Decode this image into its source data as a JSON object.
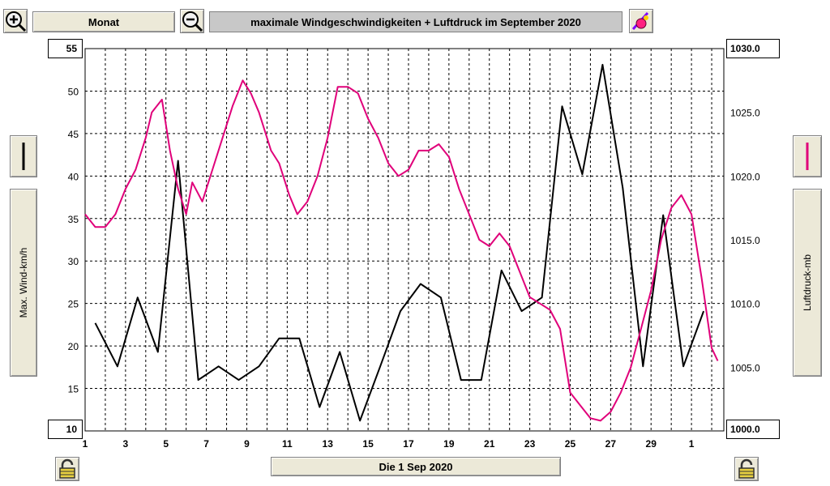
{
  "toolbar": {
    "period_label": "Monat",
    "title": "maximale Windgeschwindigkeiten + Luftdruck im September 2020",
    "date_label": "Die 1 Sep 2020"
  },
  "colors": {
    "wind": "#000000",
    "pressure": "#e0007a",
    "grid": "#000000"
  },
  "chart_data": {
    "type": "line",
    "title": "maximale Windgeschwindigkeiten + Luftdruck im September 2020",
    "ylabel": "Max. Wind-km/h",
    "y2label": "Luftdruck-mb",
    "ylim": [
      10,
      55
    ],
    "y2lim": [
      1000.0,
      1030.0
    ],
    "yticks": [
      "55",
      "50",
      "45",
      "40",
      "35",
      "30",
      "25",
      "20",
      "15",
      "10"
    ],
    "y2ticks": [
      "1030.0",
      "1025.0",
      "1020.0",
      "1015.0",
      "1010.0",
      "1005.0",
      "1000.0"
    ],
    "xticks": [
      "1",
      "3",
      "5",
      "7",
      "9",
      "11",
      "13",
      "15",
      "17",
      "19",
      "21",
      "23",
      "25",
      "27",
      "29",
      "1"
    ],
    "xlim_days": [
      1,
      32.6
    ],
    "grid": true,
    "series": [
      {
        "name": "Max. Wind-km/h",
        "axis": "left",
        "x": [
          1.5,
          2.6,
          3.6,
          4.6,
          5.6,
          6.6,
          7.6,
          8.6,
          9.6,
          10.6,
          11.6,
          12.6,
          13.6,
          14.6,
          15.6,
          16.6,
          17.6,
          18.6,
          19.6,
          20.6,
          21.6,
          22.6,
          23.6,
          24.6,
          25.6,
          26.6,
          27.6,
          28.6,
          29.6,
          30.6,
          31.6
        ],
        "values": [
          22.7,
          17.6,
          25.7,
          19.3,
          41.8,
          16.0,
          17.6,
          16.0,
          17.6,
          20.9,
          20.9,
          12.8,
          19.3,
          11.2,
          17.6,
          24.1,
          27.3,
          25.7,
          16.0,
          16.0,
          28.9,
          24.1,
          25.7,
          48.2,
          40.2,
          53.1,
          38.6,
          17.6,
          35.4,
          17.6,
          24.1
        ]
      },
      {
        "name": "Luftdruck-mb",
        "axis": "right",
        "x": [
          1.0,
          1.5,
          2.0,
          2.5,
          3.0,
          3.5,
          4.0,
          4.3,
          4.8,
          5.2,
          5.6,
          6.0,
          6.3,
          6.8,
          7.3,
          7.8,
          8.3,
          8.8,
          9.2,
          9.6,
          10.2,
          10.6,
          11.1,
          11.5,
          12.0,
          12.5,
          13.0,
          13.5,
          14.0,
          14.5,
          15.0,
          15.5,
          16.0,
          16.5,
          17.0,
          17.5,
          18.0,
          18.5,
          19.0,
          19.5,
          20.0,
          20.5,
          21.0,
          21.5,
          22.0,
          22.5,
          23.0,
          23.5,
          24.0,
          24.5,
          25.0,
          25.5,
          26.0,
          26.5,
          27.0,
          27.5,
          28.0,
          28.5,
          29.0,
          29.5,
          30.0,
          30.5,
          31.0,
          31.5,
          32.0,
          32.3
        ],
        "values": [
          1017.0,
          1016.0,
          1016.0,
          1017.0,
          1019.0,
          1020.5,
          1023.0,
          1025.0,
          1026.0,
          1022.0,
          1019.0,
          1017.0,
          1019.5,
          1018.0,
          1020.5,
          1023.0,
          1025.5,
          1027.5,
          1026.5,
          1025.0,
          1022.0,
          1021.0,
          1018.5,
          1017.0,
          1018.0,
          1020.0,
          1023.0,
          1027.0,
          1027.0,
          1026.5,
          1024.5,
          1023.0,
          1021.0,
          1020.0,
          1020.5,
          1022.0,
          1022.0,
          1022.5,
          1021.5,
          1019.0,
          1017.0,
          1015.0,
          1014.5,
          1015.5,
          1014.5,
          1012.5,
          1010.5,
          1010.0,
          1009.5,
          1008.0,
          1003.0,
          1002.0,
          1001.0,
          1000.8,
          1001.5,
          1003.0,
          1005.0,
          1008.0,
          1011.0,
          1015.0,
          1017.5,
          1018.5,
          1017.0,
          1012.0,
          1006.5,
          1005.5
        ]
      }
    ]
  }
}
